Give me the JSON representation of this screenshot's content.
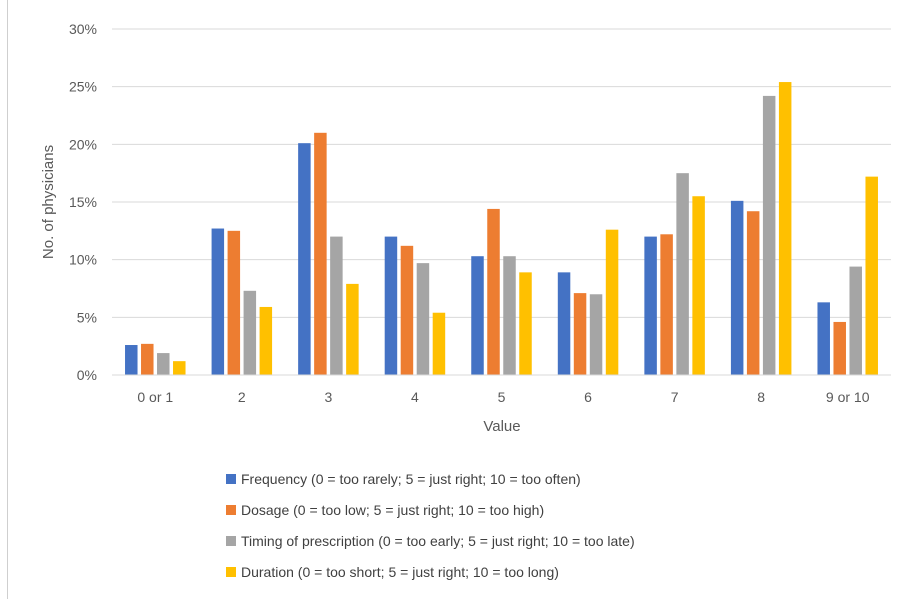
{
  "chart_data": {
    "type": "bar",
    "title": "",
    "xlabel": "Value",
    "ylabel": "No. of physicians",
    "ylim": [
      0,
      30
    ],
    "yticks": [
      0,
      5,
      10,
      15,
      20,
      25,
      30
    ],
    "ytick_labels": [
      "0%",
      "5%",
      "10%",
      "15%",
      "20%",
      "25%",
      "30%"
    ],
    "grid": true,
    "legend_position": "bottom",
    "categories": [
      "0 or 1",
      "2",
      "3",
      "4",
      "5",
      "6",
      "7",
      "8",
      "9 or 10"
    ],
    "series": [
      {
        "name": "Frequency (0 = too rarely; 5 = just right; 10 = too often)",
        "color": "#4472C4",
        "values": [
          2.6,
          12.7,
          20.1,
          12.0,
          10.3,
          8.9,
          12.0,
          15.1,
          6.3
        ]
      },
      {
        "name": "Dosage (0 = too low; 5 = just right; 10 = too high)",
        "color": "#ED7D31",
        "values": [
          2.7,
          12.5,
          21.0,
          11.2,
          14.4,
          7.1,
          12.2,
          14.2,
          4.6
        ]
      },
      {
        "name": "Timing of prescription (0 = too early; 5 = just right; 10 = too late)",
        "color": "#A5A5A5",
        "values": [
          1.9,
          7.3,
          12.0,
          9.7,
          10.3,
          7.0,
          17.5,
          24.2,
          9.4
        ]
      },
      {
        "name": "Duration (0 = too short; 5 = just right; 10 = too long)",
        "color": "#FFC000",
        "values": [
          1.2,
          5.9,
          7.9,
          5.4,
          8.9,
          12.6,
          15.5,
          25.4,
          17.2
        ]
      }
    ]
  }
}
